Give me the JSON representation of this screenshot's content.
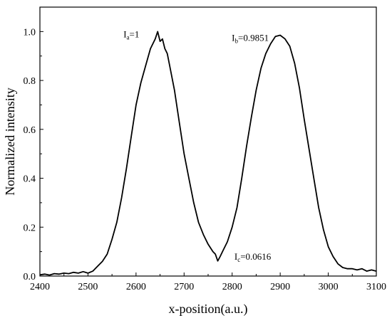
{
  "chart_data": {
    "type": "line",
    "xlabel": "x-position(a.u.)",
    "ylabel": "Normalized intensity",
    "xlim": [
      2400,
      3100
    ],
    "ylim": [
      0,
      1.1
    ],
    "x_ticks": [
      2400,
      2500,
      2600,
      2700,
      2800,
      2900,
      3000,
      3100
    ],
    "x_tick_labels": [
      "2400",
      "2500",
      "2600",
      "2700",
      "2800",
      "2900",
      "3000",
      "3100"
    ],
    "y_ticks": [
      0,
      0.2,
      0.4,
      0.6,
      0.8,
      1.0
    ],
    "y_tick_labels": [
      "0.0",
      "0.2",
      "0.4",
      "0.6",
      "0.8",
      "1.0"
    ],
    "grid": false,
    "series": [
      {
        "color": "#000000",
        "x": [
          2400,
          2410,
          2420,
          2430,
          2440,
          2450,
          2460,
          2470,
          2480,
          2490,
          2500,
          2510,
          2520,
          2530,
          2540,
          2550,
          2560,
          2570,
          2580,
          2590,
          2600,
          2610,
          2620,
          2630,
          2640,
          2645,
          2650,
          2655,
          2660,
          2665,
          2670,
          2680,
          2690,
          2700,
          2710,
          2720,
          2730,
          2740,
          2750,
          2760,
          2765,
          2770,
          2775,
          2780,
          2790,
          2800,
          2810,
          2820,
          2830,
          2840,
          2850,
          2860,
          2870,
          2880,
          2890,
          2900,
          2910,
          2920,
          2930,
          2940,
          2950,
          2960,
          2970,
          2980,
          2990,
          3000,
          3010,
          3020,
          3030,
          3040,
          3050,
          3060,
          3070,
          3080,
          3090,
          3100
        ],
        "y": [
          0.005,
          0.008,
          0.004,
          0.01,
          0.008,
          0.012,
          0.01,
          0.015,
          0.012,
          0.018,
          0.012,
          0.02,
          0.04,
          0.06,
          0.09,
          0.15,
          0.22,
          0.32,
          0.44,
          0.57,
          0.7,
          0.79,
          0.86,
          0.93,
          0.97,
          1.0,
          0.96,
          0.97,
          0.93,
          0.91,
          0.86,
          0.76,
          0.63,
          0.5,
          0.4,
          0.3,
          0.22,
          0.17,
          0.13,
          0.1,
          0.09,
          0.0616,
          0.08,
          0.1,
          0.14,
          0.2,
          0.28,
          0.4,
          0.53,
          0.65,
          0.76,
          0.85,
          0.91,
          0.95,
          0.98,
          0.9851,
          0.97,
          0.94,
          0.87,
          0.77,
          0.64,
          0.52,
          0.4,
          0.28,
          0.19,
          0.12,
          0.08,
          0.05,
          0.035,
          0.03,
          0.03,
          0.025,
          0.03,
          0.02,
          0.025,
          0.02
        ]
      }
    ],
    "annotations": [
      {
        "main": "I",
        "sub": "a",
        "suffix": "=1",
        "x": 2645,
        "y": 1.0
      },
      {
        "main": "I",
        "sub": "b",
        "suffix": "=0.9851",
        "x": 2900,
        "y": 0.9851
      },
      {
        "main": "I",
        "sub": "c",
        "suffix": "=0.0616",
        "x": 2775,
        "y": 0.0616
      }
    ]
  }
}
